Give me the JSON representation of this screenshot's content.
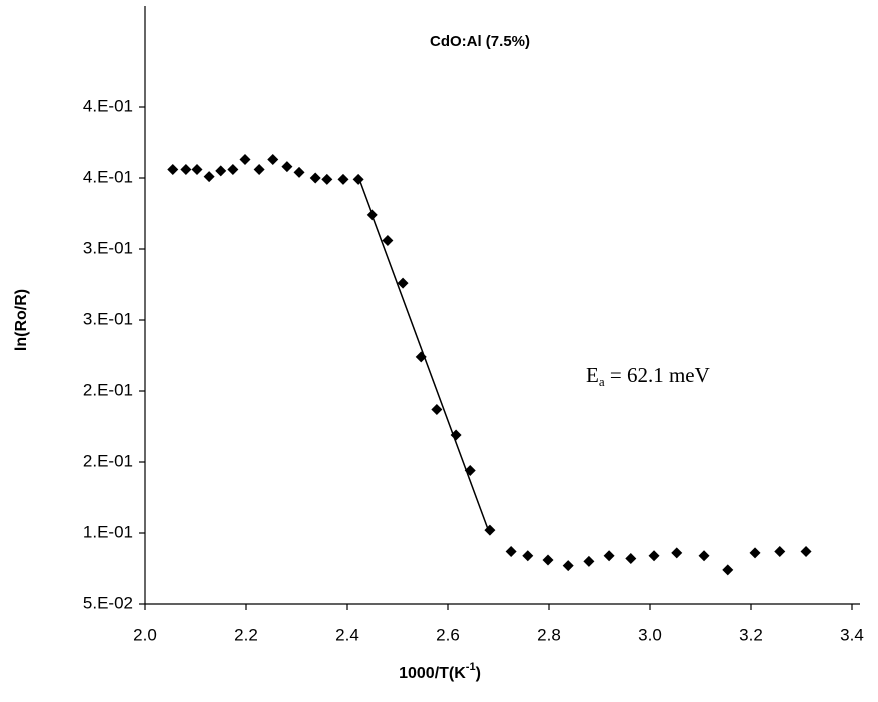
{
  "chart_data": {
    "type": "scatter",
    "title": "CdO:Al (7.5%)",
    "x_label": {
      "text": "1000/T(K",
      "superscript": "-1",
      "suffix": ")"
    },
    "y_label": "ln(Ro/R)",
    "annotation": {
      "text": "E",
      "subscript": "a",
      "suffix": " = 62.1 meV"
    },
    "xlim": [
      2.0,
      3.4
    ],
    "xticks": [
      {
        "value": 2,
        "label": "2.0"
      },
      2.2,
      2.4,
      2.6,
      2.8,
      {
        "value": 3,
        "label": "3.0"
      },
      3.2,
      3.4
    ],
    "ylim": [
      0.05,
      0.45
    ],
    "yticks": [
      {
        "value": 0.05,
        "label": "5.E-02"
      },
      {
        "value": 0.1,
        "label": "1.E-01"
      },
      {
        "value": 0.15,
        "label": "2.E-01"
      },
      {
        "value": 0.2,
        "label": "2.E-01"
      },
      {
        "value": 0.25,
        "label": "3.E-01"
      },
      {
        "value": 0.3,
        "label": "3.E-01"
      },
      {
        "value": 0.35,
        "label": "4.E-01"
      },
      {
        "value": 0.4,
        "label": "4.E-01"
      }
    ],
    "grid": false,
    "series": [
      {
        "color": "#000000",
        "x": [
          2.055,
          2.081,
          2.103,
          2.127,
          2.15,
          2.174,
          2.198,
          2.226,
          2.253,
          2.281,
          2.305,
          2.337,
          2.36,
          2.392,
          2.422,
          2.45,
          2.481,
          2.511,
          2.547,
          2.578,
          2.616,
          2.644,
          2.683,
          2.725,
          2.758,
          2.798,
          2.838,
          2.879,
          2.919,
          2.962,
          3.008,
          3.053,
          3.107,
          3.154,
          3.208,
          3.257,
          3.309
        ],
        "values": [
          0.356,
          0.356,
          0.356,
          0.351,
          0.355,
          0.356,
          0.363,
          0.356,
          0.363,
          0.358,
          0.354,
          0.35,
          0.349,
          0.349,
          0.349,
          0.324,
          0.306,
          0.276,
          0.224,
          0.187,
          0.169,
          0.144,
          0.102,
          0.087,
          0.084,
          0.081,
          0.077,
          0.08,
          0.084,
          0.082,
          0.084,
          0.086,
          0.084,
          0.074,
          0.086,
          0.087,
          0.087
        ]
      }
    ],
    "fit_line": {
      "color": "#000000",
      "x": [
        2.422,
        2.683
      ],
      "values": [
        0.351,
        0.099
      ]
    }
  }
}
